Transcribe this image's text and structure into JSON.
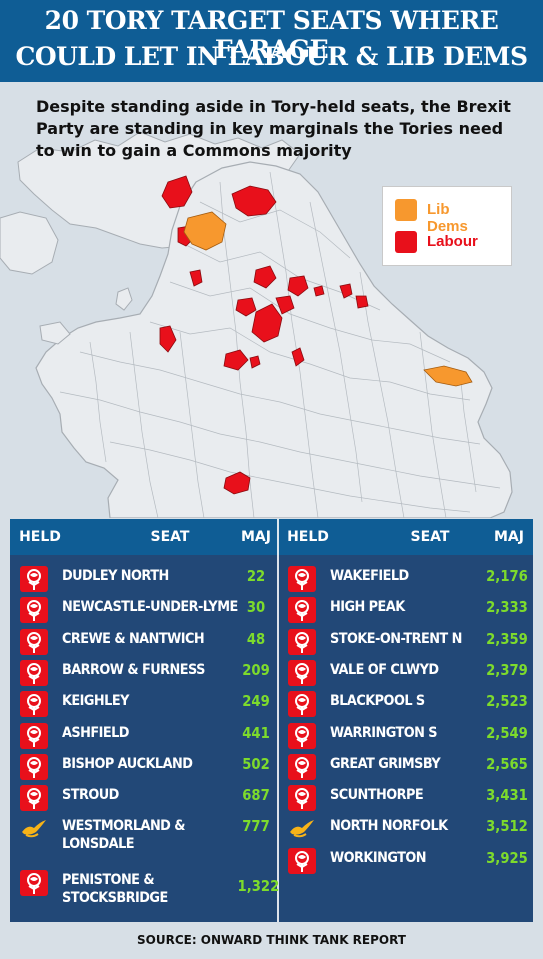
{
  "title": {
    "line1": "20 TORY TARGET SEATS WHERE FARAGE",
    "line2": "COULD LET IN LABOUR & LIB DEMS"
  },
  "subtitle": "Despite standing aside in Tory-held seats, the Brexit Party are standing in key marginals the Tories need to win to gain a Commons majority",
  "legend": [
    {
      "label": "Lib Dems",
      "color": "#f7982e"
    },
    {
      "label": "Labour",
      "color": "#e8101b"
    }
  ],
  "colors": {
    "header_bg": "#0f5d95",
    "majority_text": "#7ddb2c",
    "labour": "#e8101b",
    "lib_dem": "#f7982e"
  },
  "table": {
    "headers": {
      "held": "HELD",
      "seat": "SEAT",
      "maj": "MAJ"
    },
    "left": [
      {
        "party": "labour-rose-icon",
        "seat": "DUDLEY NORTH",
        "maj": "22"
      },
      {
        "party": "labour-rose-icon",
        "seat": "NEWCASTLE-UNDER-LYME",
        "maj": "30"
      },
      {
        "party": "labour-rose-icon",
        "seat": "CREWE & NANTWICH",
        "maj": "48"
      },
      {
        "party": "labour-rose-icon",
        "seat": "BARROW & FURNESS",
        "maj": "209"
      },
      {
        "party": "labour-rose-icon",
        "seat": "KEIGHLEY",
        "maj": "249"
      },
      {
        "party": "labour-rose-icon",
        "seat": "ASHFIELD",
        "maj": "441"
      },
      {
        "party": "labour-rose-icon",
        "seat": "BISHOP AUCKLAND",
        "maj": "502"
      },
      {
        "party": "labour-rose-icon",
        "seat": "STROUD",
        "maj": "687"
      },
      {
        "party": "lib-dem-bird-icon",
        "seat": "WESTMORLAND &",
        "seat2": "LONSDALE",
        "maj": "777"
      },
      {
        "party": "labour-rose-icon",
        "seat": "PENISTONE &",
        "seat2": "STOCKSBRIDGE",
        "maj": "1,322"
      }
    ],
    "right": [
      {
        "party": "labour-rose-icon",
        "seat": "WAKEFIELD",
        "maj": "2,176"
      },
      {
        "party": "labour-rose-icon",
        "seat": "HIGH PEAK",
        "maj": "2,333"
      },
      {
        "party": "labour-rose-icon",
        "seat": "STOKE-ON-TRENT N",
        "maj": "2,359"
      },
      {
        "party": "labour-rose-icon",
        "seat": "VALE OF CLWYD",
        "maj": "2,379"
      },
      {
        "party": "labour-rose-icon",
        "seat": "BLACKPOOL S",
        "maj": "2,523"
      },
      {
        "party": "labour-rose-icon",
        "seat": "WARRINGTON S",
        "maj": "2,549"
      },
      {
        "party": "labour-rose-icon",
        "seat": "GREAT GRIMSBY",
        "maj": "2,565"
      },
      {
        "party": "labour-rose-icon",
        "seat": "SCUNTHORPE",
        "maj": "3,431"
      },
      {
        "party": "lib-dem-bird-icon",
        "seat": "NORTH NORFOLK",
        "maj": "3,512"
      },
      {
        "party": "labour-rose-icon",
        "seat": "WORKINGTON",
        "maj": "3,925"
      }
    ]
  },
  "source": "SOURCE: ONWARD THINK TANK REPORT"
}
